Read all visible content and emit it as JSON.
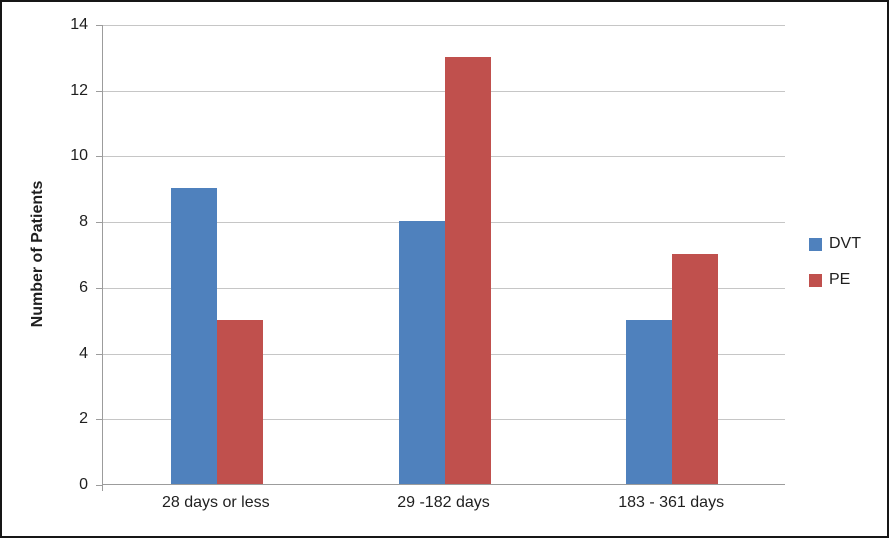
{
  "chart_data": {
    "type": "bar",
    "categories": [
      "28 days or less",
      "29 -182 days",
      "183 - 361 days"
    ],
    "series": [
      {
        "name": "DVT",
        "color": "#4F81BD",
        "values": [
          9,
          8,
          5
        ]
      },
      {
        "name": "PE",
        "color": "#C0504D",
        "values": [
          5,
          13,
          7
        ]
      }
    ],
    "title": "",
    "xlabel": "",
    "ylabel": "Number of Patients",
    "ylim": [
      0,
      14
    ],
    "ytick_step": 2,
    "yticks": [
      0,
      2,
      4,
      6,
      8,
      10,
      12,
      14
    ],
    "grid": true,
    "legend_position": "right"
  },
  "colors": {
    "axis": "#9c9c9c",
    "gridline": "#c6c6c6",
    "text": "#1f1f1f",
    "background": "#ffffff",
    "frame_border": "#161616"
  }
}
